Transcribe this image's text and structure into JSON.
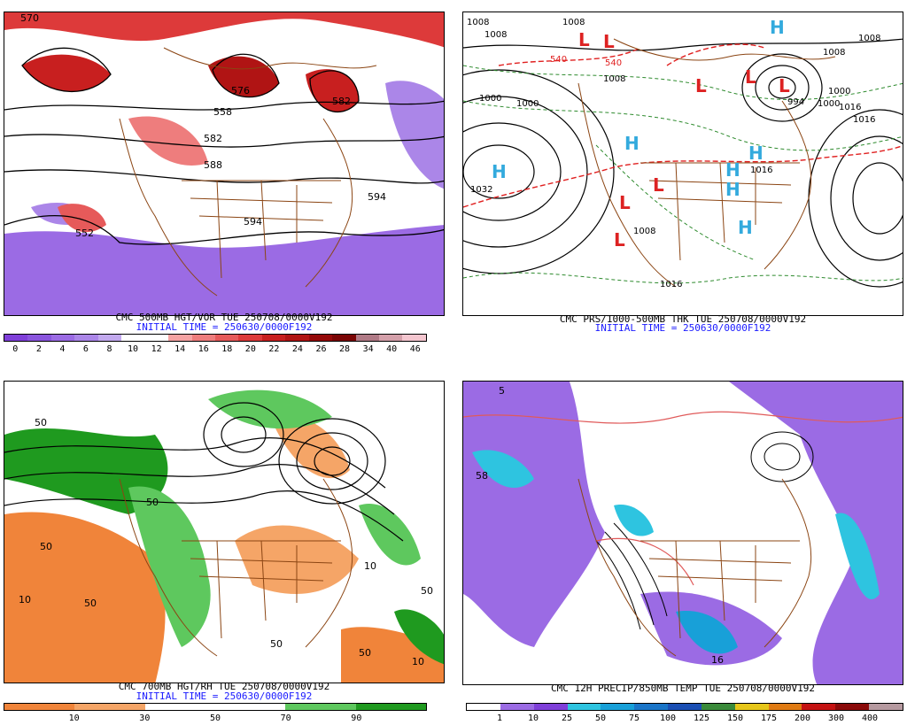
{
  "panels": [
    {
      "title": "CMC 500MB HGT/VOR TUE 250708/0000V192",
      "init": "INITIAL TIME = 250630/0000F192",
      "colorbar": {
        "labels": [
          "0",
          "2",
          "4",
          "6",
          "8",
          "10",
          "12",
          "14",
          "16",
          "18",
          "20",
          "22",
          "24",
          "26",
          "28",
          "34",
          "40",
          "46"
        ],
        "colors": [
          "#7f3fd9",
          "#8a55de",
          "#9b6be4",
          "#ab86e8",
          "#c2a9ee",
          "#ffffff",
          "#ffffff",
          "#f5a3a3",
          "#ee7d7d",
          "#e65a5a",
          "#dd3a3a",
          "#c81f1f",
          "#b01414",
          "#950a0a",
          "#7a0505",
          "#b07a86",
          "#d4a0aa",
          "#f4c6cf"
        ]
      },
      "map_labels": [
        "570",
        "552",
        "558",
        "576",
        "582",
        "588",
        "594",
        "594",
        "582"
      ]
    },
    {
      "title": "CMC PRS/1000-500MB THK TUE 250708/0000V192",
      "init": "INITIAL TIME = 250630/0000F192",
      "pressure_centers": [
        {
          "type": "H",
          "value": "1032"
        },
        {
          "type": "H",
          "value": ""
        },
        {
          "type": "H",
          "value": ""
        },
        {
          "type": "H",
          "value": "1016"
        },
        {
          "type": "H",
          "value": ""
        },
        {
          "type": "H",
          "value": ""
        },
        {
          "type": "H",
          "value": ""
        },
        {
          "type": "L",
          "value": ""
        },
        {
          "type": "L",
          "value": ""
        },
        {
          "type": "L",
          "value": ""
        },
        {
          "type": "L",
          "value": ""
        },
        {
          "type": "L",
          "value": ""
        },
        {
          "type": "L",
          "value": "994"
        },
        {
          "type": "L",
          "value": ""
        },
        {
          "type": "L",
          "value": ""
        }
      ],
      "map_labels": [
        "1008",
        "1008",
        "1000",
        "1008",
        "1008",
        "1016",
        "1000",
        "1000",
        "1008",
        "1008",
        "1016",
        "540",
        "540",
        "1016",
        "1008",
        "1000"
      ]
    },
    {
      "title": "CMC 700MB HGT/RH TUE 250708/0000V192",
      "init": "INITIAL TIME = 250630/0000F192",
      "colorbar": {
        "labels": [
          "10",
          "30",
          "50",
          "70",
          "90"
        ],
        "colors": [
          "#f0843a",
          "#f5a567",
          "#ffffff",
          "#ffffff",
          "#5ec85e",
          "#1f9a1f"
        ]
      },
      "map_labels": [
        "50",
        "50",
        "10",
        "50",
        "50",
        "50",
        "10",
        "50",
        "50",
        "10"
      ]
    },
    {
      "title": "CMC 12H PRECIP/850MB TEMP TUE 250708/0000V192",
      "colorbar": {
        "labels": [
          "1",
          "10",
          "25",
          "50",
          "75",
          "100",
          "125",
          "150",
          "175",
          "200",
          "300",
          "400"
        ],
        "colors": [
          "#ffffff",
          "#9b6be4",
          "#7f3fd9",
          "#2ec4e0",
          "#18a0d8",
          "#1a75c8",
          "#1b4fb4",
          "#3a8a3a",
          "#e6c619",
          "#e07a12",
          "#c41212",
          "#8a0a0a",
          "#b69aa0"
        ]
      },
      "map_labels": [
        "5",
        "16",
        "58"
      ]
    }
  ]
}
